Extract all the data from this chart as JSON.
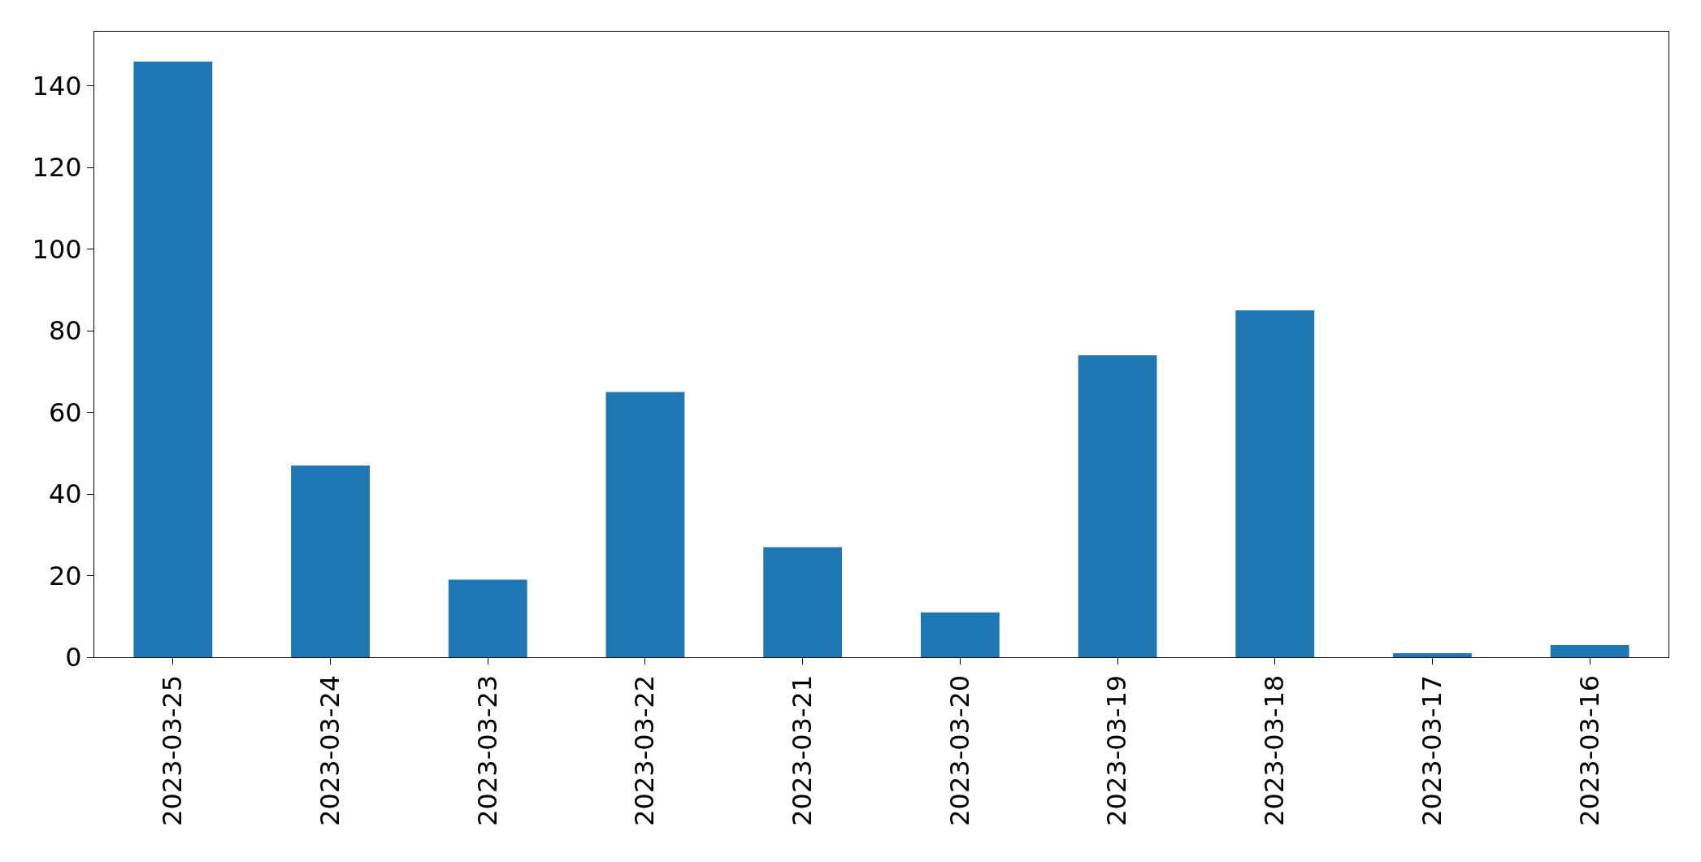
{
  "chart_data": {
    "type": "bar",
    "categories": [
      "2023-03-25",
      "2023-03-24",
      "2023-03-23",
      "2023-03-22",
      "2023-03-21",
      "2023-03-20",
      "2023-03-19",
      "2023-03-18",
      "2023-03-17",
      "2023-03-16"
    ],
    "values": [
      146,
      47,
      19,
      65,
      27,
      11,
      74,
      85,
      1,
      3
    ],
    "color": "#1f77b4",
    "ylim": [
      0,
      153.3
    ],
    "yticks": [
      0,
      20,
      40,
      60,
      80,
      100,
      120,
      140
    ],
    "grid": false,
    "legend": false
  }
}
